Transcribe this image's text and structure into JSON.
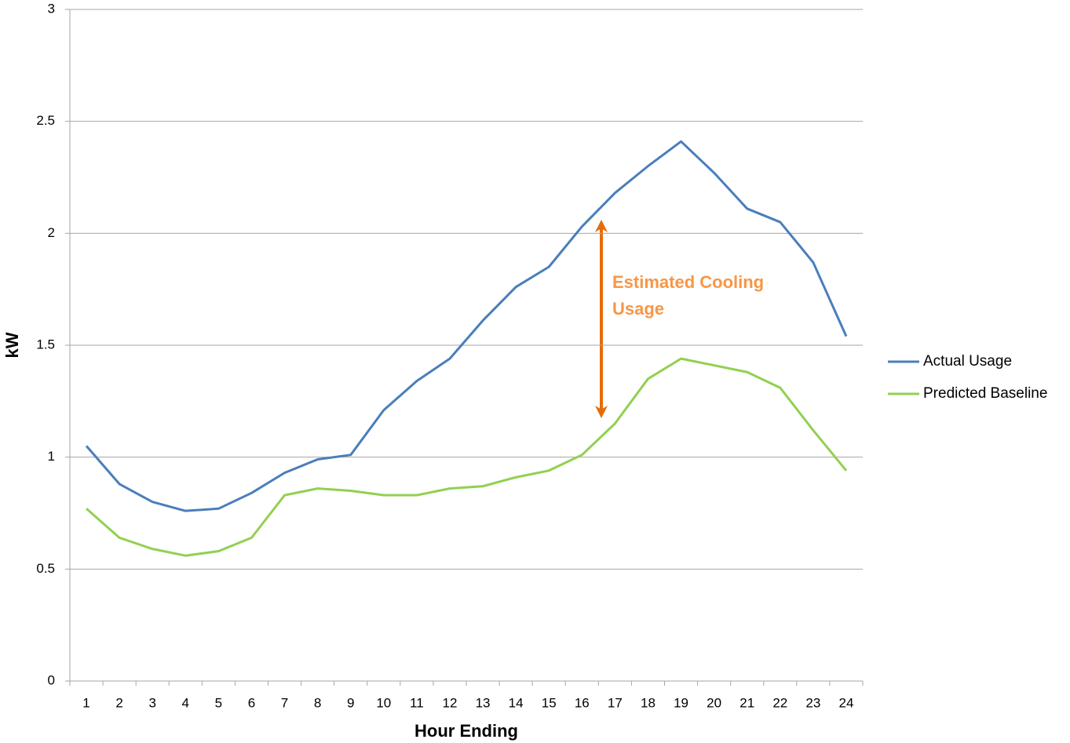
{
  "chart_data": {
    "type": "line",
    "x_label": "Hour Ending",
    "y_label": "kW",
    "annotation": "Estimated Cooling Usage",
    "categories": [
      "1",
      "2",
      "3",
      "4",
      "5",
      "6",
      "7",
      "8",
      "9",
      "10",
      "11",
      "12",
      "13",
      "14",
      "15",
      "16",
      "17",
      "18",
      "19",
      "20",
      "21",
      "22",
      "23",
      "24"
    ],
    "series": [
      {
        "name": "Actual Usage",
        "color": "#4a7ebb",
        "values": [
          1.05,
          0.88,
          0.8,
          0.76,
          0.77,
          0.84,
          0.93,
          0.99,
          1.01,
          1.21,
          1.34,
          1.44,
          1.61,
          1.76,
          1.85,
          2.03,
          2.18,
          2.3,
          2.41,
          2.27,
          2.11,
          2.05,
          1.87,
          1.54
        ]
      },
      {
        "name": "Predicted Baseline",
        "color": "#92d050",
        "values": [
          0.77,
          0.64,
          0.59,
          0.56,
          0.58,
          0.64,
          0.83,
          0.86,
          0.85,
          0.83,
          0.83,
          0.86,
          0.87,
          0.91,
          0.94,
          1.01,
          1.15,
          1.35,
          1.44,
          1.41,
          1.38,
          1.31,
          1.12,
          0.94
        ]
      }
    ],
    "ylim": [
      0,
      3
    ],
    "yticks": [
      0,
      0.5,
      1,
      1.5,
      2,
      2.5,
      3
    ],
    "grid": true,
    "legend": "right"
  }
}
